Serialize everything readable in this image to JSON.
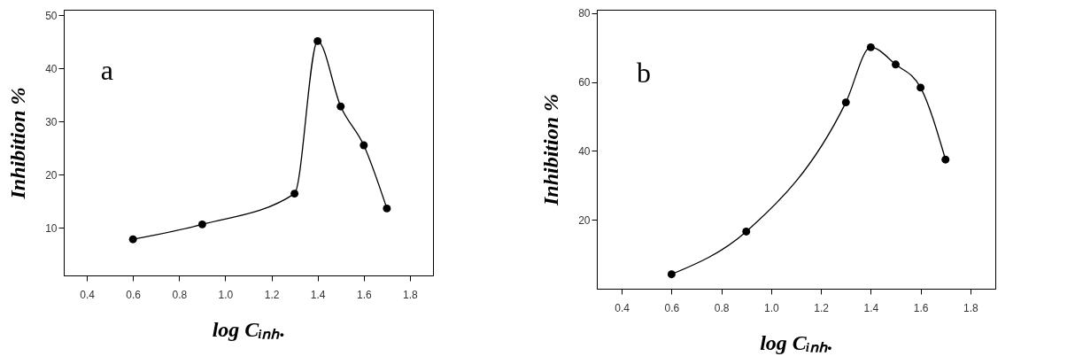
{
  "chart_data": [
    {
      "type": "line",
      "xlabel": "log Cᵢₙₕ.",
      "ylabel": "Inhibition %",
      "annotations": [
        "a"
      ],
      "x": [
        0.6,
        0.9,
        1.3,
        1.4,
        1.5,
        1.6,
        1.7
      ],
      "values": [
        7.8,
        10.6,
        16.4,
        45.1,
        32.8,
        25.5,
        13.6
      ],
      "color": "#000000",
      "marker": "circle",
      "line_style": "solid",
      "xlim": [
        0.3,
        1.9
      ],
      "xticks": [
        0.4,
        0.6,
        0.8,
        {
          "value": 1,
          "label": "1.0"
        },
        1.2,
        1.4,
        1.6,
        1.8
      ],
      "ylim": [
        1,
        51
      ],
      "yticks": [
        10,
        20,
        30,
        40,
        50
      ],
      "grid": false
    },
    {
      "type": "line",
      "xlabel": "log Cᵢₙₕ.",
      "ylabel": "Inhibition %",
      "annotations": [
        "b"
      ],
      "x": [
        0.6,
        0.9,
        1.3,
        1.4,
        1.5,
        1.6,
        1.7
      ],
      "values": [
        4.2,
        16.6,
        54.1,
        70.1,
        65.1,
        58.4,
        37.5
      ],
      "color": "#000000",
      "marker": "circle",
      "line_style": "solid",
      "xlim": [
        0.3,
        1.9
      ],
      "xticks": [
        0.4,
        0.6,
        0.8,
        {
          "value": 1,
          "label": "1.0"
        },
        1.2,
        1.4,
        1.6,
        1.8
      ],
      "ylim": [
        0,
        81
      ],
      "yticks": [
        20,
        40,
        60,
        80
      ],
      "grid": false
    }
  ]
}
